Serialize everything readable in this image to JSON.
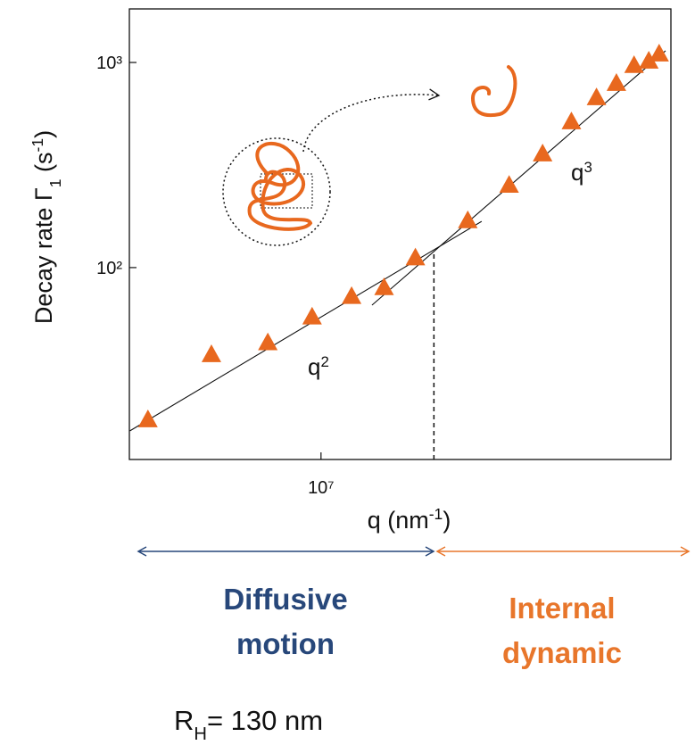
{
  "chart_data": {
    "type": "scatter",
    "log_x": true,
    "log_y": true,
    "xlim": [
      5200000,
      33000000
    ],
    "ylim": [
      11.6,
      1824
    ],
    "xticks": [
      {
        "value": 10000000,
        "label": "10⁷"
      }
    ],
    "yticks": [
      {
        "value": 100,
        "label": "10²"
      },
      {
        "value": 1000,
        "label": "10³"
      }
    ],
    "x_label": [
      {
        "text": "q (nm"
      },
      {
        "text": "-1",
        "shift": "super"
      },
      {
        "text": ")"
      }
    ],
    "y_label": [
      {
        "text": "Decay rate Γ"
      },
      {
        "text": "1",
        "shift": "sub"
      },
      {
        "text": " (s"
      },
      {
        "text": "-1",
        "shift": "super"
      },
      {
        "text": ")"
      }
    ],
    "series": [
      {
        "color": "#e8681e",
        "x": [
          5540000,
          6880000,
          8340000,
          9700000,
          11100000,
          12400000,
          13800000,
          16500000,
          19000000,
          21300000,
          23500000,
          25600000,
          27400000,
          29100000,
          30600000,
          31700000
        ],
        "values": [
          18.2,
          37.8,
          43.2,
          57.7,
          72.6,
          80.2,
          112,
          170,
          253,
          360,
          516,
          676,
          794,
          971,
          1020,
          1105
        ]
      }
    ],
    "fit_lines": [
      {
        "label": [
          {
            "text": "q"
          },
          {
            "text": "2",
            "shift": "super"
          }
        ],
        "x": [
          5210000,
          17300000
        ],
        "values": [
          16.0,
          168
        ]
      },
      {
        "label": [
          {
            "text": "q"
          },
          {
            "text": "3",
            "shift": "super"
          }
        ],
        "x": [
          11900000,
          32400000
        ],
        "values": [
          65.6,
          1140
        ]
      }
    ],
    "crossover_x": 14700000,
    "regions": [
      {
        "label": [
          "Diffusive",
          "motion"
        ],
        "color": "#27477a"
      },
      {
        "label": [
          "Internal",
          "dynamic"
        ],
        "color": "#e8762b"
      }
    ],
    "radius_label": [
      {
        "text": "R"
      },
      {
        "text": "H",
        "shift": "sub"
      },
      {
        "text": "= 130 nm"
      }
    ]
  }
}
